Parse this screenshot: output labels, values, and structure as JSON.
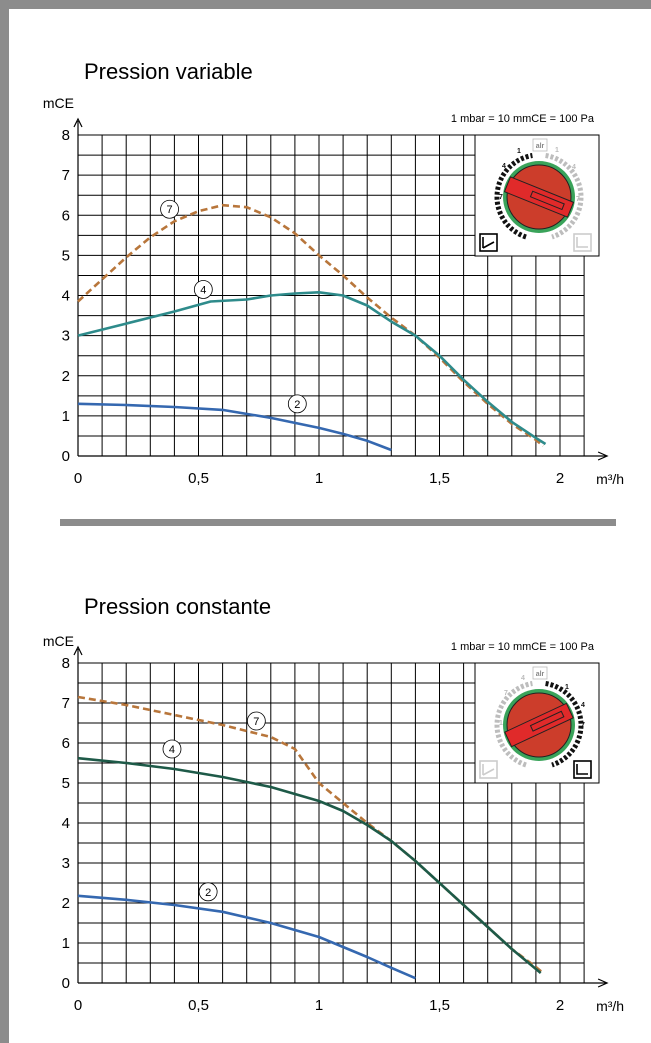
{
  "chart_data": [
    {
      "type": "line",
      "title": "Pression variable",
      "ylabel": "mCE",
      "xlabel": "m³/h",
      "conversion_note": "1 mbar = 10 mmCE = 100 Pa",
      "xlim": [
        0,
        2.0
      ],
      "ylim": [
        0,
        8
      ],
      "x_ticks": [
        "0",
        "0,5",
        "1",
        "1,5",
        "2"
      ],
      "y_ticks": [
        "0",
        "1",
        "2",
        "3",
        "4",
        "5",
        "6",
        "7",
        "8"
      ],
      "grid": true,
      "inset_legend": "top-right",
      "series": [
        {
          "name": "7",
          "style": "dashed",
          "color": "#b8763b",
          "points": [
            [
              0,
              3.85
            ],
            [
              0.1,
              4.4
            ],
            [
              0.2,
              4.95
            ],
            [
              0.3,
              5.45
            ],
            [
              0.4,
              5.85
            ],
            [
              0.5,
              6.1
            ],
            [
              0.6,
              6.25
            ],
            [
              0.7,
              6.2
            ],
            [
              0.8,
              5.95
            ],
            [
              0.9,
              5.55
            ],
            [
              1.0,
              5.0
            ],
            [
              1.1,
              4.5
            ],
            [
              1.2,
              3.95
            ],
            [
              1.3,
              3.45
            ],
            [
              1.4,
              3.0
            ],
            [
              1.5,
              2.45
            ],
            [
              1.6,
              1.85
            ],
            [
              1.7,
              1.3
            ],
            [
              1.8,
              0.8
            ],
            [
              1.9,
              0.4
            ],
            [
              1.93,
              0.25
            ]
          ]
        },
        {
          "name": "4",
          "style": "solid",
          "color": "#2e8b8b",
          "points": [
            [
              0,
              3.0
            ],
            [
              0.2,
              3.3
            ],
            [
              0.4,
              3.6
            ],
            [
              0.55,
              3.85
            ],
            [
              0.7,
              3.9
            ],
            [
              0.8,
              4.0
            ],
            [
              0.9,
              4.05
            ],
            [
              1.0,
              4.08
            ],
            [
              1.1,
              4.0
            ],
            [
              1.2,
              3.75
            ],
            [
              1.3,
              3.35
            ],
            [
              1.4,
              3.0
            ],
            [
              1.5,
              2.5
            ],
            [
              1.6,
              1.9
            ],
            [
              1.7,
              1.35
            ],
            [
              1.8,
              0.85
            ],
            [
              1.9,
              0.45
            ],
            [
              1.94,
              0.3
            ]
          ]
        },
        {
          "name": "2",
          "style": "solid",
          "color": "#3568b0",
          "points": [
            [
              0,
              1.3
            ],
            [
              0.2,
              1.27
            ],
            [
              0.4,
              1.22
            ],
            [
              0.6,
              1.15
            ],
            [
              0.8,
              0.95
            ],
            [
              1.0,
              0.7
            ],
            [
              1.1,
              0.55
            ],
            [
              1.2,
              0.38
            ],
            [
              1.3,
              0.15
            ]
          ]
        }
      ],
      "curve_labels": [
        {
          "text": "7",
          "x": 0.38,
          "y": 6.15
        },
        {
          "text": "4",
          "x": 0.52,
          "y": 4.15
        },
        {
          "text": "2",
          "x": 0.91,
          "y": 1.3
        }
      ]
    },
    {
      "type": "line",
      "title": "Pression constante",
      "ylabel": "mCE",
      "xlabel": "m³/h",
      "conversion_note": "1 mbar = 10 mmCE = 100 Pa",
      "xlim": [
        0,
        2.0
      ],
      "ylim": [
        0,
        8
      ],
      "x_ticks": [
        "0",
        "0,5",
        "1",
        "1,5",
        "2"
      ],
      "y_ticks": [
        "0",
        "1",
        "2",
        "3",
        "4",
        "5",
        "6",
        "7",
        "8"
      ],
      "grid": true,
      "inset_legend": "top-right",
      "series": [
        {
          "name": "7",
          "style": "dashed",
          "color": "#b8763b",
          "points": [
            [
              0,
              7.15
            ],
            [
              0.2,
              6.95
            ],
            [
              0.4,
              6.7
            ],
            [
              0.6,
              6.45
            ],
            [
              0.8,
              6.15
            ],
            [
              0.9,
              5.85
            ],
            [
              1.0,
              5.0
            ],
            [
              1.1,
              4.5
            ],
            [
              1.2,
              4.0
            ],
            [
              1.3,
              3.55
            ],
            [
              1.4,
              3.05
            ],
            [
              1.5,
              2.5
            ],
            [
              1.6,
              1.95
            ],
            [
              1.7,
              1.4
            ],
            [
              1.8,
              0.85
            ],
            [
              1.9,
              0.4
            ],
            [
              1.93,
              0.25
            ]
          ]
        },
        {
          "name": "4",
          "style": "solid",
          "color": "#1e5a48",
          "points": [
            [
              0,
              5.62
            ],
            [
              0.2,
              5.5
            ],
            [
              0.4,
              5.35
            ],
            [
              0.6,
              5.15
            ],
            [
              0.8,
              4.9
            ],
            [
              1.0,
              4.55
            ],
            [
              1.1,
              4.3
            ],
            [
              1.2,
              3.95
            ],
            [
              1.3,
              3.55
            ],
            [
              1.4,
              3.05
            ],
            [
              1.5,
              2.5
            ],
            [
              1.6,
              1.95
            ],
            [
              1.7,
              1.4
            ],
            [
              1.8,
              0.85
            ],
            [
              1.9,
              0.35
            ],
            [
              1.92,
              0.25
            ]
          ]
        },
        {
          "name": "2",
          "style": "solid",
          "color": "#3568b0",
          "points": [
            [
              0,
              2.18
            ],
            [
              0.2,
              2.08
            ],
            [
              0.4,
              1.95
            ],
            [
              0.6,
              1.78
            ],
            [
              0.8,
              1.5
            ],
            [
              1.0,
              1.15
            ],
            [
              1.1,
              0.9
            ],
            [
              1.2,
              0.65
            ],
            [
              1.3,
              0.38
            ],
            [
              1.4,
              0.12
            ]
          ]
        }
      ],
      "curve_labels": [
        {
          "text": "7",
          "x": 0.74,
          "y": 6.55
        },
        {
          "text": "4",
          "x": 0.39,
          "y": 5.85
        },
        {
          "text": "2",
          "x": 0.54,
          "y": 2.28
        }
      ]
    }
  ],
  "dials": [
    {
      "numbers": [
        "1",
        "4",
        "7",
        "4",
        "7",
        "1"
      ],
      "logo": "alr"
    },
    {
      "numbers": [
        "4",
        "7",
        "1",
        "1",
        "4",
        "7"
      ],
      "logo": "alr"
    }
  ],
  "colors": {
    "frame": "#8c8c8c",
    "dial_body": "#cc3d2b",
    "dial_ring": "#3aa35a",
    "dial_scale_dark": "#111111",
    "dial_scale_light": "#bdbdbd"
  }
}
